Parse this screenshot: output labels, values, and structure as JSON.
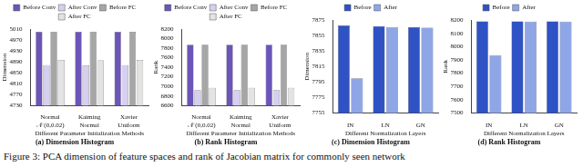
{
  "caption": "Figure 3: PCA dimension of feature spaces and rank of Jacobian matrix for commonly seen network",
  "chart_data": [
    {
      "type": "bar",
      "title": "(a) Dimension Histogram",
      "x_label": "Different Parameter Initialization Methods",
      "y_label": "Dimension",
      "categories": [
        [
          "Normal",
          "𝒩 (0,0.02)"
        ],
        [
          "Kaiming",
          "Normal"
        ],
        [
          "Xavier",
          "Uniform"
        ]
      ],
      "series": [
        {
          "name": "Before Conv",
          "color": "#6b55b8",
          "values": [
            5000,
            5000,
            5000
          ]
        },
        {
          "name": "After Conv",
          "color": "#d6cff0",
          "values": [
            4878,
            4877,
            4878
          ]
        },
        {
          "name": "Before FC",
          "color": "#a6a6a6",
          "values": [
            5000,
            5000,
            5000
          ]
        },
        {
          "name": "After FC",
          "color": "#e3e3e3",
          "values": [
            4897,
            4895,
            4897
          ]
        }
      ],
      "ylim": [
        4730,
        5010
      ],
      "yticks": [
        4730,
        4770,
        4810,
        4850,
        4890,
        4930,
        4970,
        5010
      ],
      "legend": "top",
      "grid": false
    },
    {
      "type": "bar",
      "title": "(b) Rank Histogram",
      "x_label": "Different Parameter Initialization Methods",
      "y_label": "Rank",
      "categories": [
        [
          "Normal",
          "𝒩 (0,0.02)"
        ],
        [
          "Kaiming",
          "Normal"
        ],
        [
          "Xavier",
          "Uniform"
        ]
      ],
      "series": [
        {
          "name": "Before Conv",
          "color": "#6b55b8",
          "values": [
            7870,
            7870,
            7870
          ]
        },
        {
          "name": "After Conv",
          "color": "#d6cff0",
          "values": [
            6920,
            6920,
            6920
          ]
        },
        {
          "name": "Before FC",
          "color": "#a6a6a6",
          "values": [
            7870,
            7870,
            7870
          ]
        },
        {
          "name": "After FC",
          "color": "#e3e3e3",
          "values": [
            6970,
            6970,
            6970
          ]
        }
      ],
      "ylim": [
        6600,
        8200
      ],
      "yticks": [
        6600,
        6800,
        7000,
        7200,
        7400,
        7600,
        7800,
        8000,
        8200
      ],
      "legend": "top",
      "grid": false
    },
    {
      "type": "bar",
      "title": "(c) Dimension Histogram",
      "x_label": "Different Normalization Layers",
      "y_label": "Dimension",
      "categories": [
        "IN",
        "LN",
        "GN"
      ],
      "series": [
        {
          "name": "Before",
          "color": "#2f52c4",
          "values": [
            7868,
            7867,
            7866
          ]
        },
        {
          "name": "After",
          "color": "#8fa6e6",
          "values": [
            7800,
            7866,
            7865
          ]
        }
      ],
      "ylim": [
        7755,
        7875
      ],
      "yticks": [
        7755,
        7775,
        7795,
        7815,
        7835,
        7855,
        7875
      ],
      "legend": "top",
      "grid": false
    },
    {
      "type": "bar",
      "title": "(d) Rank Histogram",
      "x_label": "Different Normalization Layers",
      "y_label": "Rank",
      "categories": [
        "IN",
        "LN",
        "GN"
      ],
      "series": [
        {
          "name": "Before",
          "color": "#2f52c4",
          "values": [
            8190,
            8190,
            8190
          ]
        },
        {
          "name": "After",
          "color": "#8fa6e6",
          "values": [
            7935,
            8188,
            8188
          ]
        }
      ],
      "ylim": [
        7500,
        8200
      ],
      "yticks": [
        7500,
        7600,
        7700,
        7800,
        7900,
        8000,
        8100,
        8200
      ],
      "legend": "top",
      "grid": false
    }
  ]
}
